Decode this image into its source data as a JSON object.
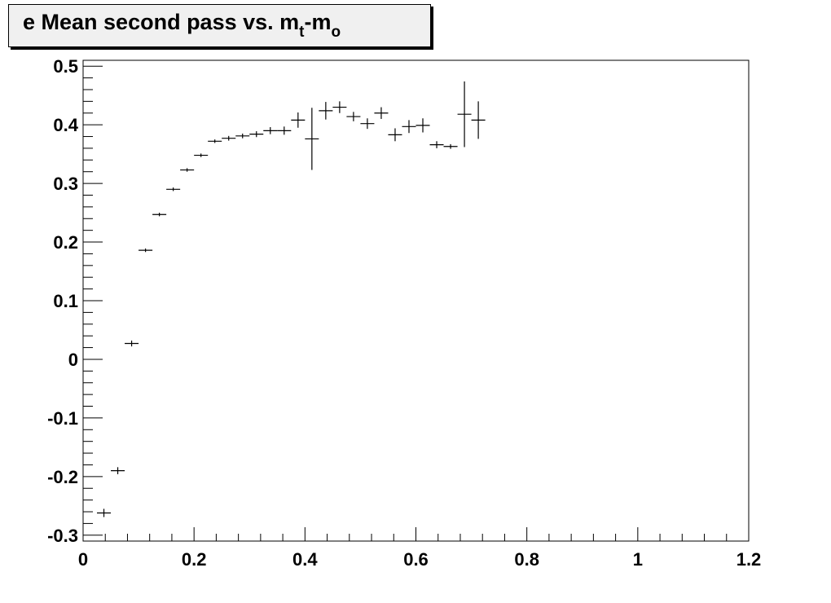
{
  "chart_data": {
    "type": "scatter",
    "title": {
      "prefix": "e Mean second pass vs. m",
      "sub1": "t",
      "middle": "-m",
      "sub2": "o"
    },
    "xlim": [
      0,
      1.2
    ],
    "ylim": [
      -0.31,
      0.51
    ],
    "xticks": [
      0,
      0.2,
      0.4,
      0.6,
      0.8,
      1,
      1.2
    ],
    "xtick_labels": [
      "0",
      "0.2",
      "0.4",
      "0.6",
      "0.8",
      "1",
      "1.2"
    ],
    "yticks": [
      -0.3,
      -0.2,
      -0.1,
      0,
      0.1,
      0.2,
      0.3,
      0.4,
      0.5
    ],
    "ytick_labels": [
      "-0.3",
      "-0.2",
      "-0.1",
      "0",
      "0.1",
      "0.2",
      "0.3",
      "0.4",
      "0.5"
    ],
    "grid": false,
    "legend": "none",
    "points": [
      {
        "x": 0.0375,
        "y": -0.262,
        "ex": 0.0125,
        "ey": 0.007
      },
      {
        "x": 0.0625,
        "y": -0.19,
        "ex": 0.0125,
        "ey": 0.006
      },
      {
        "x": 0.0875,
        "y": 0.027,
        "ex": 0.0125,
        "ey": 0.005
      },
      {
        "x": 0.1125,
        "y": 0.186,
        "ex": 0.0125,
        "ey": 0.003
      },
      {
        "x": 0.1375,
        "y": 0.247,
        "ex": 0.0125,
        "ey": 0.003
      },
      {
        "x": 0.1625,
        "y": 0.29,
        "ex": 0.0125,
        "ey": 0.003
      },
      {
        "x": 0.1875,
        "y": 0.323,
        "ex": 0.0125,
        "ey": 0.003
      },
      {
        "x": 0.2125,
        "y": 0.348,
        "ex": 0.0125,
        "ey": 0.003
      },
      {
        "x": 0.2375,
        "y": 0.372,
        "ex": 0.0125,
        "ey": 0.003
      },
      {
        "x": 0.2625,
        "y": 0.377,
        "ex": 0.0125,
        "ey": 0.004
      },
      {
        "x": 0.2875,
        "y": 0.381,
        "ex": 0.0125,
        "ey": 0.004
      },
      {
        "x": 0.3125,
        "y": 0.384,
        "ex": 0.0125,
        "ey": 0.005
      },
      {
        "x": 0.3375,
        "y": 0.39,
        "ex": 0.0125,
        "ey": 0.006
      },
      {
        "x": 0.3625,
        "y": 0.39,
        "ex": 0.0125,
        "ey": 0.007
      },
      {
        "x": 0.3875,
        "y": 0.408,
        "ex": 0.0125,
        "ey": 0.013
      },
      {
        "x": 0.4125,
        "y": 0.376,
        "ex": 0.0125,
        "ey": 0.053
      },
      {
        "x": 0.4375,
        "y": 0.424,
        "ex": 0.0125,
        "ey": 0.015
      },
      {
        "x": 0.4625,
        "y": 0.43,
        "ex": 0.0125,
        "ey": 0.01
      },
      {
        "x": 0.4875,
        "y": 0.414,
        "ex": 0.0125,
        "ey": 0.008
      },
      {
        "x": 0.5125,
        "y": 0.402,
        "ex": 0.0125,
        "ey": 0.009
      },
      {
        "x": 0.5375,
        "y": 0.42,
        "ex": 0.0125,
        "ey": 0.01
      },
      {
        "x": 0.5625,
        "y": 0.383,
        "ex": 0.0125,
        "ey": 0.011
      },
      {
        "x": 0.5875,
        "y": 0.397,
        "ex": 0.0125,
        "ey": 0.011
      },
      {
        "x": 0.6125,
        "y": 0.399,
        "ex": 0.0125,
        "ey": 0.012
      },
      {
        "x": 0.6375,
        "y": 0.366,
        "ex": 0.0125,
        "ey": 0.006
      },
      {
        "x": 0.6625,
        "y": 0.363,
        "ex": 0.0125,
        "ey": 0.004
      },
      {
        "x": 0.6875,
        "y": 0.418,
        "ex": 0.0125,
        "ey": 0.056
      },
      {
        "x": 0.7125,
        "y": 0.408,
        "ex": 0.0125,
        "ey": 0.032
      }
    ]
  }
}
